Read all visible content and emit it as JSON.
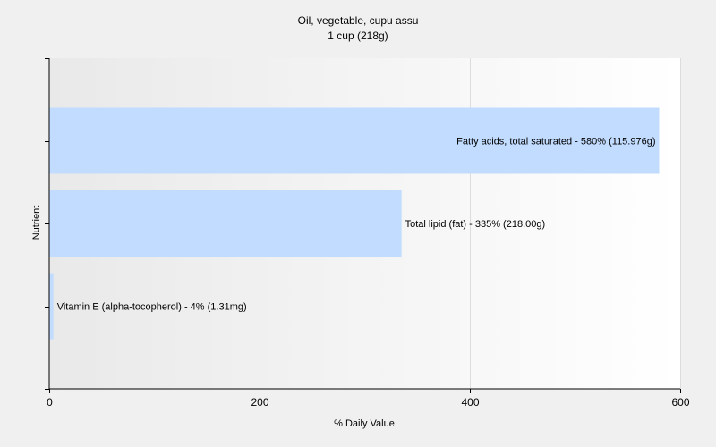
{
  "chart_data": {
    "type": "bar",
    "orientation": "horizontal",
    "title": "Oil, vegetable, cupu assu",
    "subtitle": "1 cup (218g)",
    "xlabel": "% Daily Value",
    "ylabel": "Nutrient",
    "xlim": [
      0,
      600
    ],
    "xticks": [
      0,
      200,
      400,
      600
    ],
    "xtick_labels": [
      "0",
      "200",
      "400",
      "600"
    ],
    "grid": true,
    "legend": "none",
    "bar_color": "#c2dcff",
    "categories": [
      "Fatty acids, total saturated",
      "Total lipid (fat)",
      "Vitamin E (alpha-tocopherol)"
    ],
    "values": [
      580,
      335,
      4
    ],
    "data_labels": [
      "Fatty acids, total saturated - 580% (115.976g)",
      "Total lipid (fat) - 335% (218.00g)",
      "Vitamin E (alpha-tocopherol) - 4% (1.31mg)"
    ]
  }
}
